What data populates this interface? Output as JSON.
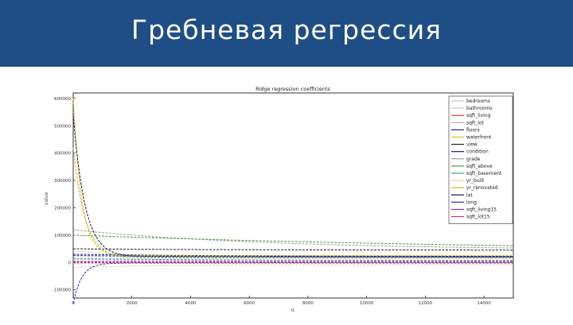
{
  "slide": {
    "title": "Гребневая регрессия"
  },
  "colors": {
    "header_bg": "#1f4e86",
    "header_text": "#ffffff"
  },
  "chart_data": {
    "type": "line",
    "title": "Ridge regression coefficients",
    "xlabel": "α",
    "ylabel": "value",
    "xlim": [
      0,
      15000
    ],
    "ylim": [
      -130000,
      620000
    ],
    "x_ticks": [
      0,
      2000,
      4000,
      6000,
      8000,
      10000,
      12000,
      14000
    ],
    "y_ticks": [
      -100000,
      0,
      100000,
      200000,
      300000,
      400000,
      500000,
      600000
    ],
    "x_tick_labels": [
      "0",
      "2000",
      "4000",
      "6000",
      "8000",
      "10000",
      "12000",
      "14000"
    ],
    "y_tick_labels": [
      "-100000",
      "0",
      "100000",
      "200000",
      "300000",
      "400000",
      "500000",
      "600000"
    ],
    "legend_position": "top-right",
    "series": [
      {
        "name": "bedrooms",
        "color": "#b8c6d8",
        "start": -4000,
        "end": 2000,
        "rate": 0.00025
      },
      {
        "name": "bathrooms",
        "color": "#c8c8c8",
        "start": 42000,
        "end": 18000,
        "rate": 0.0004
      },
      {
        "name": "sqft_living",
        "color": "#d04040",
        "start": 2000,
        "end": 1000,
        "rate": 0.0003
      },
      {
        "name": "sqft_lot",
        "color": "#d0a0c0",
        "start": 12000,
        "end": 6000,
        "rate": 0.0003
      },
      {
        "name": "floors",
        "color": "#2020a0",
        "start": 30000,
        "end": 22000,
        "rate": 0.0002
      },
      {
        "name": "waterfront",
        "color": "#e0c000",
        "start": 600000,
        "end": 25000,
        "rate": 0.0035
      },
      {
        "name": "view",
        "color": "#202020",
        "start": 50000,
        "end": 45000,
        "rate": 0.0002
      },
      {
        "name": "condition",
        "color": "#1a1a8a",
        "start": 25000,
        "end": 20000,
        "rate": 0.0002
      },
      {
        "name": "grade",
        "color": "#a0a0a0",
        "start": 120000,
        "end": 45000,
        "rate": 0.00015
      },
      {
        "name": "sqft_above",
        "color": "#40a040",
        "start": 100000,
        "end": 35000,
        "rate": 6e-05
      },
      {
        "name": "sqft_basement",
        "color": "#2ca8a0",
        "start": 15000,
        "end": 8000,
        "rate": 0.0003
      },
      {
        "name": "yr_built",
        "color": "#d8d8a0",
        "start": -18000,
        "end": -8000,
        "rate": 0.0003
      },
      {
        "name": "yr_renovated",
        "color": "#b8b830",
        "start": 420000,
        "end": 15000,
        "rate": 0.0025
      },
      {
        "name": "lat",
        "color": "#101060",
        "start": 540000,
        "end": 20000,
        "rate": 0.0025
      },
      {
        "name": "long",
        "color": "#3030c0",
        "start": -150000,
        "end": -2000,
        "rate": 0.0035
      },
      {
        "name": "sqft_living15",
        "color": "#9030c0",
        "start": 4000,
        "end": 3000,
        "rate": 0.0003
      },
      {
        "name": "sqft_lot15",
        "color": "#e03080",
        "start": -1000,
        "end": -500,
        "rate": 0.0003
      }
    ]
  }
}
